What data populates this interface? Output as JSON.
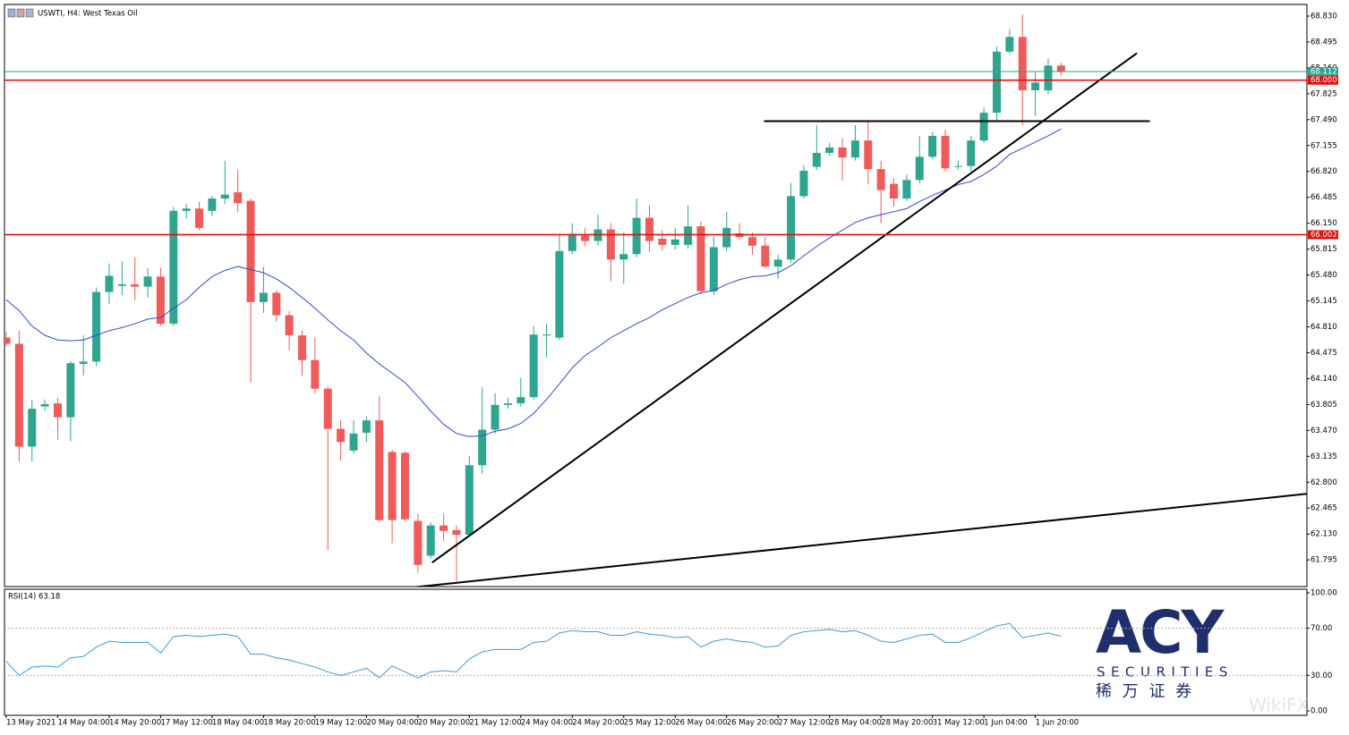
{
  "chart_data": {
    "type": "candlestick",
    "title": "USWTI, H4:  West Texas Oil",
    "categories": [
      "13 May 2021",
      null,
      null,
      null,
      "14 May 04:00",
      null,
      null,
      null,
      "14 May 20:00",
      null,
      null,
      null,
      "17 May 12:00",
      null,
      null,
      null,
      "18 May 04:00",
      null,
      null,
      null,
      "18 May 20:00",
      null,
      null,
      null,
      "19 May 12:00",
      null,
      null,
      null,
      "20 May 04:00",
      null,
      null,
      null,
      "20 May 20:00",
      null,
      null,
      null,
      "21 May 12:00",
      null,
      null,
      null,
      "24 May 04:00",
      null,
      null,
      null,
      "24 May 20:00",
      null,
      null,
      null,
      "25 May 12:00",
      null,
      null,
      null,
      "26 May 04:00",
      null,
      null,
      null,
      "26 May 20:00",
      null,
      null,
      null,
      "27 May 12:00",
      null,
      null,
      null,
      "28 May 04:00",
      null,
      null,
      null,
      "28 May 20:00",
      null,
      null,
      null,
      "31 May 12:00",
      null,
      null,
      null,
      "1 Jun 04:00",
      null,
      null,
      null,
      "1 Jun 20:00",
      null,
      null
    ],
    "open": [
      64.67,
      64.59,
      63.26,
      63.78,
      63.82,
      63.64,
      64.33,
      64.36,
      65.26,
      65.34,
      65.36,
      65.33,
      65.46,
      64.85,
      66.31,
      66.34,
      66.31,
      66.47,
      66.55,
      66.44,
      65.13,
      65.25,
      64.96,
      64.7,
      64.38,
      64.01,
      63.49,
      63.21,
      63.44,
      63.6,
      63.19,
      63.18,
      62.3,
      61.85,
      62.24,
      62.18,
      62.12,
      63.02,
      63.48,
      63.8,
      63.82,
      63.9,
      64.7,
      64.67,
      65.79,
      65.99,
      65.92,
      66.07,
      65.68,
      65.75,
      66.22,
      65.95,
      65.87,
      65.87,
      66.11,
      65.27,
      65.84,
      66.02,
      65.97,
      65.86,
      65.59,
      65.68,
      66.5,
      66.88,
      67.06,
      67.13,
      67.0,
      67.22,
      66.85,
      66.66,
      66.47,
      66.71,
      67.01,
      67.28,
      66.88,
      66.89,
      67.22,
      67.58,
      68.37,
      68.56,
      67.87,
      67.87,
      68.19
    ],
    "high": [
      64.74,
      64.76,
      63.87,
      63.87,
      63.89,
      64.37,
      64.7,
      65.32,
      65.63,
      65.66,
      65.71,
      65.57,
      65.57,
      66.36,
      66.4,
      66.43,
      66.5,
      66.96,
      66.84,
      66.47,
      65.59,
      65.28,
      65.01,
      64.76,
      64.67,
      64.04,
      63.6,
      63.6,
      63.65,
      63.91,
      63.22,
      63.2,
      62.39,
      62.28,
      62.39,
      62.24,
      63.14,
      64.03,
      63.95,
      63.89,
      64.15,
      64.82,
      64.85,
      66.01,
      66.15,
      66.09,
      66.26,
      66.15,
      66.03,
      66.47,
      66.38,
      66.06,
      66.09,
      66.38,
      66.18,
      65.98,
      66.3,
      66.15,
      66.03,
      65.97,
      65.74,
      66.67,
      66.9,
      67.42,
      67.19,
      67.25,
      67.42,
      67.48,
      66.96,
      66.73,
      66.78,
      67.28,
      67.33,
      67.36,
      66.96,
      67.28,
      67.65,
      68.44,
      68.66,
      68.85,
      68.11,
      68.28,
      68.23
    ],
    "low": [
      64.56,
      63.07,
      63.07,
      63.72,
      63.35,
      63.33,
      64.18,
      64.3,
      65.11,
      65.22,
      65.16,
      65.19,
      64.82,
      64.82,
      66.21,
      66.06,
      66.24,
      66.4,
      66.29,
      64.09,
      64.99,
      64.88,
      64.51,
      64.18,
      63.95,
      61.92,
      63.08,
      63.17,
      63.32,
      62.29,
      62.01,
      62.3,
      61.63,
      61.81,
      62.04,
      61.52,
      62.1,
      62.91,
      63.43,
      63.75,
      63.78,
      63.87,
      64.41,
      64.64,
      65.75,
      65.85,
      65.86,
      65.4,
      65.36,
      65.71,
      65.78,
      65.8,
      65.81,
      65.82,
      65.23,
      65.22,
      65.79,
      65.94,
      65.74,
      65.57,
      65.43,
      65.64,
      66.47,
      66.84,
      67.02,
      66.7,
      66.96,
      66.66,
      66.15,
      66.36,
      66.44,
      66.67,
      66.98,
      66.82,
      66.84,
      66.82,
      67.19,
      67.48,
      68.34,
      67.42,
      67.54,
      67.82,
      68.06
    ],
    "close": [
      64.59,
      63.26,
      63.75,
      63.81,
      63.64,
      64.34,
      64.36,
      65.26,
      65.47,
      65.36,
      65.33,
      65.46,
      64.85,
      66.31,
      66.34,
      66.09,
      66.47,
      66.52,
      66.41,
      65.13,
      65.25,
      64.96,
      64.7,
      64.38,
      64.01,
      63.49,
      63.32,
      63.43,
      63.6,
      62.31,
      62.31,
      62.32,
      61.73,
      62.24,
      62.17,
      62.12,
      63.02,
      63.48,
      63.8,
      63.82,
      63.9,
      64.71,
      64.71,
      65.79,
      66.01,
      65.92,
      66.07,
      65.68,
      65.75,
      66.22,
      65.92,
      65.87,
      65.94,
      66.11,
      65.27,
      65.84,
      66.09,
      65.97,
      65.86,
      65.59,
      65.68,
      66.5,
      66.83,
      67.06,
      67.13,
      67.0,
      67.22,
      66.85,
      66.58,
      66.47,
      66.71,
      67.01,
      67.28,
      66.86,
      66.89,
      67.22,
      67.58,
      68.37,
      68.56,
      67.87,
      67.97,
      68.19,
      68.11
    ],
    "up_color": "#2ea58e",
    "down_color": "#ef5a5a",
    "ylim": [
      61.45,
      68.98
    ],
    "yticks": [
      {
        "value": 68.83,
        "label": "68.830"
      },
      {
        "value": 68.495,
        "label": "68.495"
      },
      {
        "value": 68.16,
        "label": "68.160"
      },
      {
        "value": 67.825,
        "label": "67.825"
      },
      {
        "value": 67.49,
        "label": "67.490"
      },
      {
        "value": 67.155,
        "label": "67.155"
      },
      {
        "value": 66.82,
        "label": "66.820"
      },
      {
        "value": 66.485,
        "label": "66.485"
      },
      {
        "value": 66.15,
        "label": "66.150"
      },
      {
        "value": 65.815,
        "label": "65.815"
      },
      {
        "value": 65.48,
        "label": "65.480"
      },
      {
        "value": 65.145,
        "label": "65.145"
      },
      {
        "value": 64.81,
        "label": "64.810"
      },
      {
        "value": 64.475,
        "label": "64.475"
      },
      {
        "value": 64.14,
        "label": "64.140"
      },
      {
        "value": 63.805,
        "label": "63.805"
      },
      {
        "value": 63.47,
        "label": "63.470"
      },
      {
        "value": 63.135,
        "label": "63.135"
      },
      {
        "value": 62.8,
        "label": "62.800"
      },
      {
        "value": 62.465,
        "label": "62.465"
      },
      {
        "value": 62.13,
        "label": "62.130"
      },
      {
        "value": 61.795,
        "label": "61.795"
      }
    ],
    "moving_average": {
      "color": "#3347d6",
      "values": [
        65.16,
        65.02,
        64.82,
        64.7,
        64.64,
        64.63,
        64.64,
        64.7,
        64.76,
        64.8,
        64.85,
        64.91,
        64.93,
        65.05,
        65.16,
        65.32,
        65.46,
        65.54,
        65.59,
        65.55,
        65.51,
        65.43,
        65.32,
        65.19,
        65.05,
        64.9,
        64.76,
        64.64,
        64.47,
        64.33,
        64.21,
        64.09,
        63.91,
        63.72,
        63.55,
        63.43,
        63.39,
        63.4,
        63.46,
        63.49,
        63.56,
        63.69,
        63.87,
        64.07,
        64.28,
        64.44,
        64.55,
        64.67,
        64.76,
        64.85,
        64.93,
        65.03,
        65.11,
        65.19,
        65.25,
        65.28,
        65.36,
        65.42,
        65.46,
        65.47,
        65.51,
        65.6,
        65.73,
        65.85,
        65.96,
        66.06,
        66.16,
        66.22,
        66.26,
        66.3,
        66.34,
        66.43,
        66.51,
        66.58,
        66.65,
        66.69,
        66.78,
        66.89,
        67.04,
        67.12,
        67.2,
        67.28,
        67.37
      ]
    },
    "levels": [
      {
        "value": 68.112,
        "label": "68.112",
        "color": "#2ea58e"
      },
      {
        "value": 68.0,
        "label": "68.000",
        "color": "#e01010"
      },
      {
        "value": 66.002,
        "label": "66.002",
        "color": "#e01010"
      }
    ],
    "trendlines": [
      {
        "start": [
          33.1,
          61.76
        ],
        "end": [
          87.9,
          68.35
        ]
      },
      {
        "start": [
          58.9,
          67.47
        ],
        "end": [
          88.9,
          67.47
        ]
      },
      {
        "start": [
          31.6,
          61.44
        ],
        "end": [
          101.1,
          62.65
        ]
      }
    ],
    "indicator": {
      "type": "line",
      "title": "RSI(14) 63.18",
      "color": "#3a9be0",
      "ylim": [
        0,
        100
      ],
      "yticks": [
        {
          "value": 100,
          "label": "100.00"
        },
        {
          "value": 70,
          "label": "70.00"
        },
        {
          "value": 30,
          "label": "30.00"
        },
        {
          "value": 0,
          "label": "0.00"
        }
      ],
      "values": [
        42,
        30,
        37,
        38,
        37,
        45,
        46,
        54,
        59,
        58,
        58,
        58,
        49,
        63,
        64,
        63,
        64,
        65,
        63,
        48,
        48,
        45,
        43,
        40,
        37,
        33,
        30,
        33,
        36,
        28,
        38,
        33,
        28,
        33,
        34,
        33,
        44,
        50,
        52,
        52,
        52,
        58,
        59,
        66,
        68,
        67,
        67,
        64,
        64,
        67,
        65,
        64,
        62,
        63,
        54,
        59,
        61,
        59,
        58,
        54,
        55,
        64,
        67,
        68,
        69,
        67,
        68,
        64,
        59,
        58,
        61,
        64,
        65,
        58,
        58,
        62,
        67,
        72,
        74,
        62,
        64,
        66,
        63.18
      ]
    }
  },
  "brand": {
    "logo": "ACY",
    "tagline": "SECURITIES",
    "chinese": "稀 万 证 券",
    "watermark": "WikiFX"
  }
}
